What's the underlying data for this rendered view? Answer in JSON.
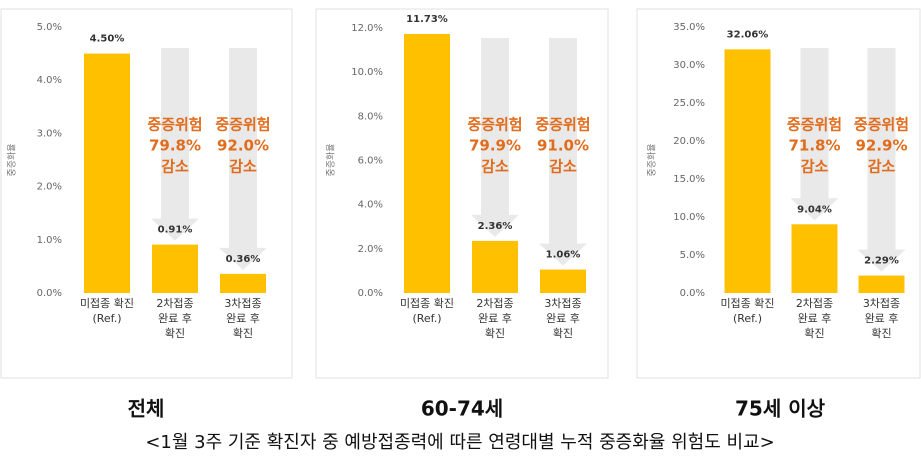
{
  "chart_data": [
    {
      "type": "bar",
      "title": "전체",
      "ylabel": "중증화율",
      "categories": [
        "미접종 확진\n(Ref.)",
        "2차접종\n완료 후\n확진",
        "3차접종\n완료 후\n확진"
      ],
      "values": [
        4.5,
        0.91,
        0.36
      ],
      "value_labels": [
        "4.50%",
        "0.91%",
        "0.36%"
      ],
      "color": "#ffc000",
      "ylim": [
        0,
        5
      ],
      "yticks": [
        {
          "value": 0,
          "label": "0.0%"
        },
        {
          "value": 1,
          "label": "1.0%"
        },
        {
          "value": 2,
          "label": "2.0%"
        },
        {
          "value": 3,
          "label": "3.0%"
        },
        {
          "value": 4,
          "label": "4.0%"
        },
        {
          "value": 5,
          "label": "5.0%"
        }
      ],
      "annotations": [
        null,
        [
          "중증위험",
          "79.8%",
          "감소"
        ],
        [
          "중증위험",
          "92.0%",
          "감소"
        ]
      ]
    },
    {
      "type": "bar",
      "title": "60-74세",
      "ylabel": "중증화율",
      "categories": [
        "미접종 확진\n(Ref.)",
        "2차접종\n완료 후\n확진",
        "3차접종\n완료 후\n확진"
      ],
      "values": [
        11.73,
        2.36,
        1.06
      ],
      "value_labels": [
        "11.73%",
        "2.36%",
        "1.06%"
      ],
      "color": "#ffc000",
      "ylim": [
        0,
        12
      ],
      "yticks": [
        {
          "value": 0,
          "label": "0.0%"
        },
        {
          "value": 2,
          "label": "2.0%"
        },
        {
          "value": 4,
          "label": "4.0%"
        },
        {
          "value": 6,
          "label": "6.0%"
        },
        {
          "value": 8,
          "label": "8.0%"
        },
        {
          "value": 10,
          "label": "10.0%"
        },
        {
          "value": 12,
          "label": "12.0%"
        }
      ],
      "annotations": [
        null,
        [
          "중증위험",
          "79.9%",
          "감소"
        ],
        [
          "중증위험",
          "91.0%",
          "감소"
        ]
      ]
    },
    {
      "type": "bar",
      "title": "75세 이상",
      "ylabel": "중증화율",
      "categories": [
        "미접종 확진\n(Ref.)",
        "2차접종\n완료 후\n확진",
        "3차접종\n완료 후\n확진"
      ],
      "values": [
        32.06,
        9.04,
        2.29
      ],
      "value_labels": [
        "32.06%",
        "9.04%",
        "2.29%"
      ],
      "color": "#ffc000",
      "ylim": [
        0,
        35
      ],
      "yticks": [
        {
          "value": 0,
          "label": "0.0%"
        },
        {
          "value": 5,
          "label": "5.0%"
        },
        {
          "value": 10,
          "label": "10.0%"
        },
        {
          "value": 15,
          "label": "15.0%"
        },
        {
          "value": 20,
          "label": "20.0%"
        },
        {
          "value": 25,
          "label": "25.0%"
        },
        {
          "value": 30,
          "label": "30.0%"
        },
        {
          "value": 35,
          "label": "35.0%"
        }
      ],
      "annotations": [
        null,
        [
          "중증위험",
          "71.8%",
          "감소"
        ],
        [
          "중증위험",
          "92.9%",
          "감소"
        ]
      ]
    }
  ],
  "caption": "<1월 3주 기준 확진자 중 예방접종력에 따른 연령대별 누적 중증화율 위험도 비교>"
}
